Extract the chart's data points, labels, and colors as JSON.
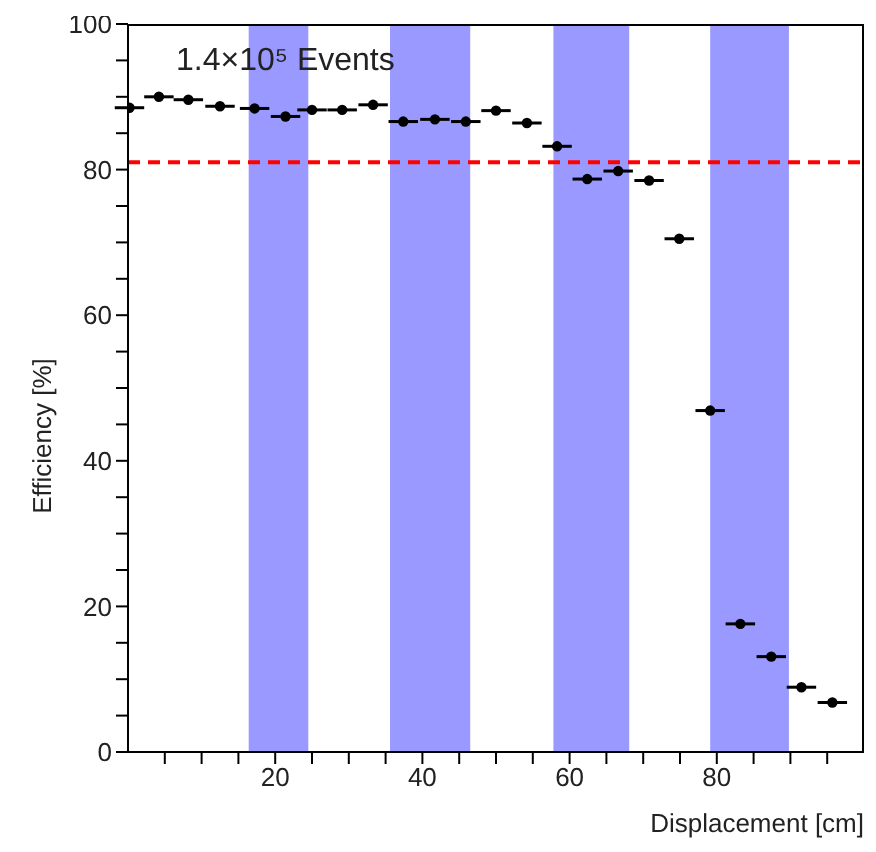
{
  "chart_data": {
    "type": "scatter",
    "xlabel": "Displacement [cm]",
    "ylabel": "Efficiency [%]",
    "annotations": [
      "1.4×10⁵ Events"
    ],
    "x": [
      0.2,
      4.2,
      8.2,
      12.5,
      17.2,
      21.4,
      25,
      29.1,
      33.3,
      37.4,
      41.7,
      45.9,
      50,
      54.2,
      58.3,
      62.4,
      66.6,
      70.8,
      74.9,
      79.1,
      83.2,
      87.4,
      91.5,
      95.7
    ],
    "series": [
      {
        "color": "#000000",
        "values": [
          88.5,
          90,
          89.6,
          88.7,
          88.4,
          87.3,
          88.2,
          88.2,
          88.9,
          86.6,
          86.9,
          86.6,
          88.1,
          86.4,
          83.2,
          78.7,
          79.8,
          78.5,
          70.5,
          46.9,
          17.6,
          13.1,
          8.9,
          6.8
        ],
        "xerrors": [
          2,
          2,
          2,
          2,
          2,
          2,
          2,
          2,
          2,
          2,
          2,
          2,
          2,
          2,
          2,
          2,
          2,
          2,
          2,
          2,
          2,
          2,
          2,
          2
        ]
      }
    ],
    "xlim": [
      0,
      100
    ],
    "ylim": [
      0,
      100
    ],
    "xticks": [
      {
        "value": 5,
        "label": null
      },
      {
        "value": 10,
        "label": null
      },
      {
        "value": 15,
        "label": null
      },
      20,
      {
        "value": 25,
        "label": null
      },
      {
        "value": 30,
        "label": null
      },
      {
        "value": 35,
        "label": null
      },
      40,
      {
        "value": 45,
        "label": null
      },
      {
        "value": 50,
        "label": null
      },
      {
        "value": 55,
        "label": null
      },
      60,
      {
        "value": 65,
        "label": null
      },
      {
        "value": 70,
        "label": null
      },
      {
        "value": 75,
        "label": null
      },
      80,
      {
        "value": 85,
        "label": null
      },
      {
        "value": 90,
        "label": null
      },
      {
        "value": 95,
        "label": null
      }
    ],
    "yticks": [
      0,
      {
        "value": 5,
        "label": null
      },
      {
        "value": 10,
        "label": null
      },
      {
        "value": 15,
        "label": null
      },
      20,
      {
        "value": 25,
        "label": null
      },
      {
        "value": 30,
        "label": null
      },
      {
        "value": 35,
        "label": null
      },
      40,
      {
        "value": 45,
        "label": null
      },
      {
        "value": 50,
        "label": null
      },
      {
        "value": 55,
        "label": null
      },
      60,
      {
        "value": 65,
        "label": null
      },
      {
        "value": 70,
        "label": null
      },
      {
        "value": 75,
        "label": null
      },
      80,
      {
        "value": 85,
        "label": null
      },
      {
        "value": 90,
        "label": null
      },
      {
        "value": 95,
        "label": null
      },
      100
    ],
    "ref_lines": [
      {
        "axis": "y",
        "value": 81,
        "color": "#ff0000",
        "line_style": "dashed"
      }
    ],
    "bands": [
      {
        "axis": "x",
        "from": 16.4,
        "to": 24.5,
        "color": "#9999ff"
      },
      {
        "axis": "x",
        "from": 35.6,
        "to": 46.5,
        "color": "#9999ff"
      },
      {
        "axis": "x",
        "from": 57.8,
        "to": 68.1,
        "color": "#9999ff"
      },
      {
        "axis": "x",
        "from": 79.1,
        "to": 89.8,
        "color": "#9999ff"
      }
    ],
    "marker": "circle",
    "grid": false,
    "legend": false
  }
}
